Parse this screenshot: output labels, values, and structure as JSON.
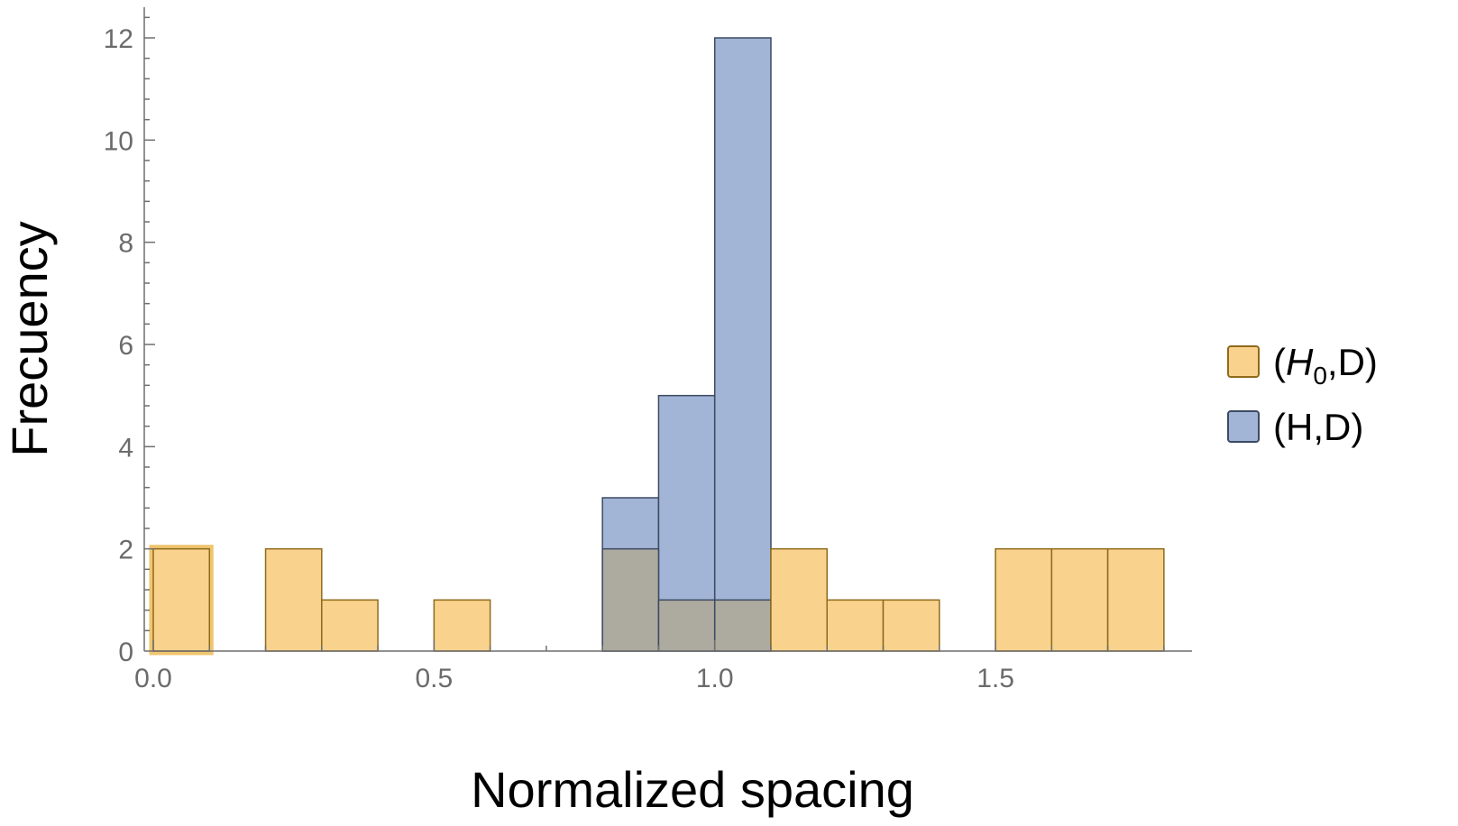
{
  "chart_data": {
    "type": "bar",
    "xlabel": "Normalized spacing",
    "ylabel": "Frecuency",
    "xlim": [
      0,
      1.85
    ],
    "ylim": [
      0,
      12.6
    ],
    "x_ticks": [
      "0.0",
      "0.5",
      "1.0",
      "1.5"
    ],
    "y_ticks": [
      "0",
      "2",
      "4",
      "6",
      "8",
      "10",
      "12"
    ],
    "bin_width": 0.1,
    "legend_position": "right",
    "series": [
      {
        "name_prefix": "(",
        "name_italic": "H",
        "name_sub": "0",
        "name_suffix": ",D)",
        "color": "#f9d38e",
        "stroke": "#8f6a1c",
        "bins": [
          {
            "x0": 0.0,
            "count": 2
          },
          {
            "x0": 0.2,
            "count": 2
          },
          {
            "x0": 0.3,
            "count": 1
          },
          {
            "x0": 0.5,
            "count": 1
          },
          {
            "x0": 0.8,
            "count": 2
          },
          {
            "x0": 0.9,
            "count": 1
          },
          {
            "x0": 1.0,
            "count": 1
          },
          {
            "x0": 1.1,
            "count": 2
          },
          {
            "x0": 1.2,
            "count": 1
          },
          {
            "x0": 1.3,
            "count": 1
          },
          {
            "x0": 1.5,
            "count": 2
          },
          {
            "x0": 1.6,
            "count": 2
          },
          {
            "x0": 1.7,
            "count": 2
          }
        ]
      },
      {
        "name": "(H,D)",
        "color": "#a3b5d6",
        "stroke": "#3d4a62",
        "bins": [
          {
            "x0": 0.8,
            "count": 3
          },
          {
            "x0": 0.9,
            "count": 5
          },
          {
            "x0": 1.0,
            "count": 12
          }
        ]
      }
    ],
    "overlap_color": "#adaa9f"
  }
}
